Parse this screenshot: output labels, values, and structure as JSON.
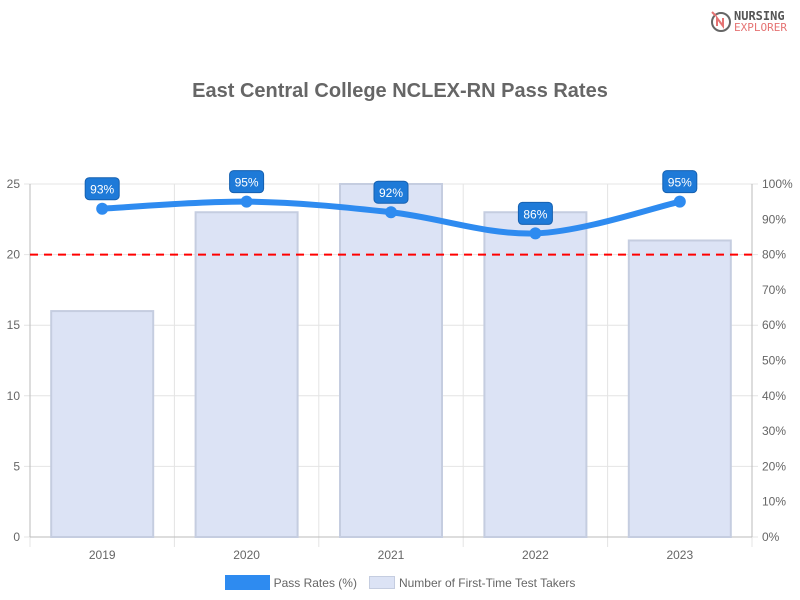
{
  "logo": {
    "line1": "NURSING",
    "line2": "EXPLORER"
  },
  "chart_data": {
    "type": "bar+line",
    "title": "East Central College NCLEX-RN Pass Rates",
    "categories": [
      "2019",
      "2020",
      "2021",
      "2022",
      "2023"
    ],
    "series": [
      {
        "name": "Pass Rates (%)",
        "type": "line",
        "axis": "right",
        "values": [
          93,
          95,
          92,
          86,
          95
        ],
        "labels": [
          "93%",
          "95%",
          "92%",
          "86%",
          "95%"
        ],
        "color": "#2e8bf0"
      },
      {
        "name": "Number of First-Time Test Takers",
        "type": "bar",
        "axis": "left",
        "values": [
          16,
          23,
          25,
          23,
          21
        ],
        "color": "#dce3f5"
      }
    ],
    "y_left": {
      "range": [
        0,
        25
      ],
      "ticks": [
        "0",
        "5",
        "10",
        "15",
        "20",
        "25"
      ]
    },
    "y_right": {
      "range": [
        0,
        100
      ],
      "ticks": [
        "0%",
        "10%",
        "20%",
        "30%",
        "40%",
        "50%",
        "60%",
        "70%",
        "80%",
        "90%",
        "100%"
      ]
    },
    "reference_line": {
      "value_percent": 80,
      "color": "#ff0000",
      "style": "dashed"
    },
    "grid": true,
    "legend_placement": "bottom"
  }
}
